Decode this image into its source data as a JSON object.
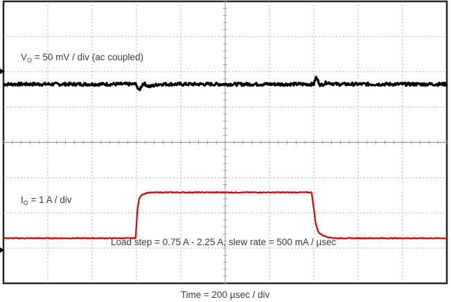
{
  "chart_data": {
    "type": "line",
    "title": "",
    "grid": true,
    "divisions": {
      "horizontal": 10,
      "vertical": 8
    },
    "xlabel": "Time = 200 µsec / div",
    "annotation": "Load step = 0.75 A - 2.25 A, slew rate = 500 mA / µsec",
    "series": [
      {
        "label_main": "V",
        "label_sub": "O",
        "label_rest": " = 50 mV / div (ac coupled)",
        "color": "#000000",
        "units": "div",
        "x": [
          0,
          2.9,
          3.0,
          3.05,
          3.15,
          3.3,
          3.5,
          7.0,
          7.05,
          7.15,
          7.3,
          7.5,
          10
        ],
        "y": [
          5.65,
          5.65,
          5.65,
          5.45,
          5.68,
          5.58,
          5.65,
          5.65,
          5.85,
          5.62,
          5.7,
          5.65,
          5.65
        ]
      },
      {
        "label_main": "I",
        "label_sub": "O",
        "label_rest": " =  1 A / div",
        "color": "#e00000",
        "units": "div",
        "x": [
          0,
          2.98,
          3.02,
          3.06,
          3.12,
          3.25,
          3.5,
          5.0,
          6.95,
          7.0,
          7.04,
          7.1,
          7.2,
          7.35,
          7.5,
          10
        ],
        "y": [
          1.28,
          1.28,
          2.1,
          2.4,
          2.52,
          2.57,
          2.58,
          2.58,
          2.58,
          2.1,
          1.7,
          1.45,
          1.36,
          1.3,
          1.28,
          1.28
        ]
      }
    ]
  }
}
